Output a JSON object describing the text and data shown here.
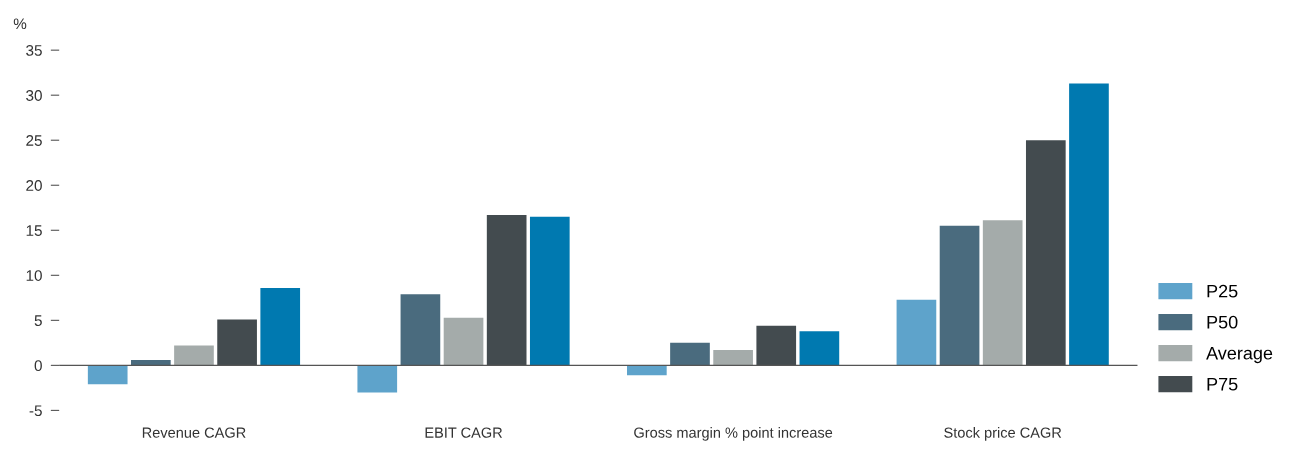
{
  "chart_data": {
    "type": "bar",
    "ylabel": "%",
    "categories": [
      "Revenue CAGR",
      "EBIT CAGR",
      "Gross margin % point increase",
      "Stock price CAGR"
    ],
    "series": [
      {
        "name": "P25",
        "color": "#5ea3cb",
        "values": [
          -2.1,
          -3.0,
          -1.1,
          7.3
        ]
      },
      {
        "name": "P50",
        "color": "#4a6b7e",
        "values": [
          0.6,
          7.9,
          2.5,
          15.5
        ]
      },
      {
        "name": "Average",
        "color": "#a4abaa",
        "values": [
          2.2,
          5.3,
          1.7,
          16.1
        ]
      },
      {
        "name": "P75",
        "color": "#434b4f",
        "values": [
          5.1,
          16.7,
          4.4,
          25.0
        ]
      },
      {
        "color": "#0079b0",
        "values": [
          8.6,
          16.5,
          3.8,
          31.3
        ]
      }
    ],
    "ylim": [
      -5,
      35
    ],
    "yticks": [
      {
        "value": -5,
        "label": "-5"
      },
      0,
      5,
      10,
      15,
      20,
      25,
      30,
      35
    ],
    "ref_lines": [
      {
        "axis": "y",
        "value": 0,
        "color": "#555555"
      }
    ],
    "grid": false,
    "legend": "bottom right"
  }
}
